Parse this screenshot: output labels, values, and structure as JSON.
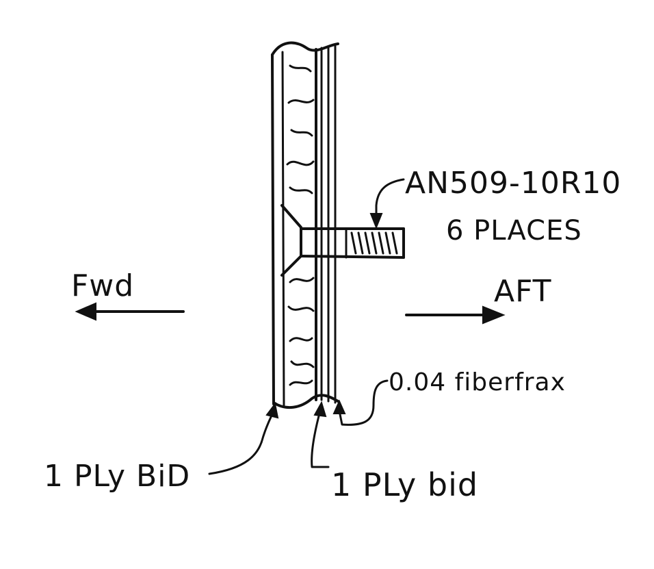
{
  "labels": {
    "fastener_part": "AN509-10R10",
    "fastener_qty": "6 PLACES",
    "forward": "Fwd",
    "aft": "AFT",
    "insulation": "0.04 fiberfrax",
    "outer_ply": "1 PLy BiD",
    "inner_ply": "1 PLy bid"
  },
  "colors": {
    "ink": "#111111",
    "paper": "#ffffff"
  }
}
